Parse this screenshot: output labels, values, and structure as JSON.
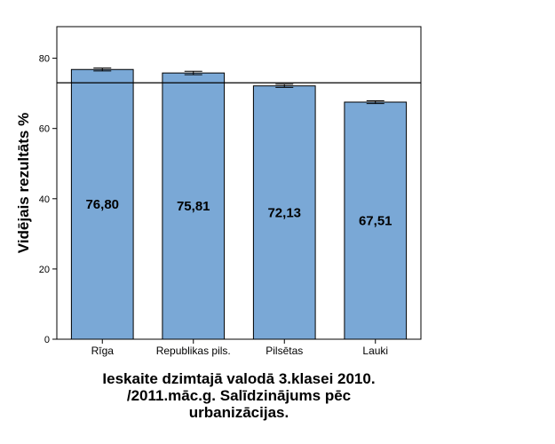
{
  "chart_data": {
    "type": "bar",
    "categories": [
      "Rīga",
      "Republikas pils.",
      "Pilsētas",
      "Lauki"
    ],
    "values": [
      76.8,
      75.81,
      72.13,
      67.51
    ],
    "data_labels": [
      "76,80",
      "75,81",
      "72,13",
      "67,51"
    ],
    "error_bars": [
      {
        "low": 76.4,
        "high": 77.2
      },
      {
        "low": 75.3,
        "high": 76.3
      },
      {
        "low": 71.7,
        "high": 72.6
      },
      {
        "low": 67.1,
        "high": 67.9
      }
    ],
    "reference_line": 73.0,
    "ylabel": "Vidējais rezultāts %",
    "xlabel_lines": [
      "Ieskaite dzimtajā valodā 3.klasei 2010.",
      "/2011.māc.g. Salīdzinājums pēc",
      "urbanizācijas."
    ],
    "ylim": [
      0,
      89
    ],
    "yticks": [
      0,
      20,
      40,
      60,
      80
    ],
    "grid": false,
    "legend": "none",
    "bar_color": "#7aa8d6",
    "bar_edge_color": "#000000"
  }
}
